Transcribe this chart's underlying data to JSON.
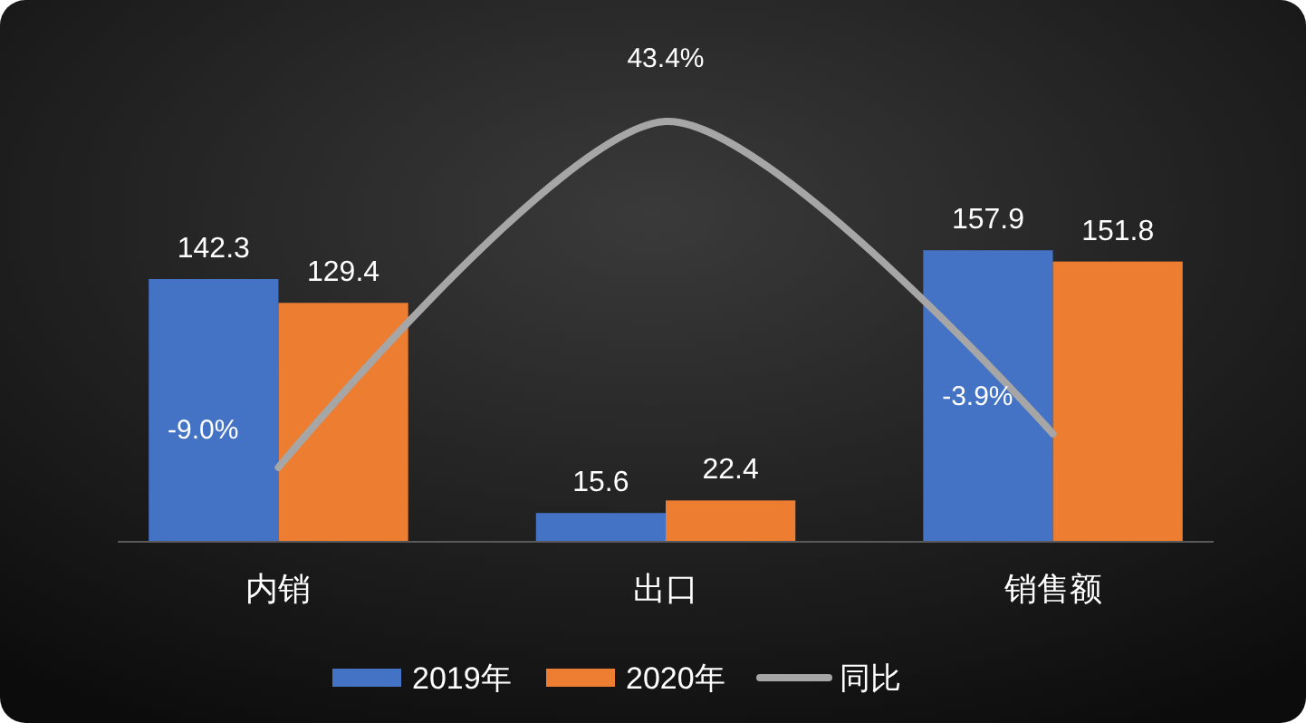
{
  "chart_data": {
    "type": "bar",
    "categories": [
      "内销",
      "出口",
      "销售额"
    ],
    "series": [
      {
        "name": "2019年",
        "color": "#4472c4",
        "values": [
          142.3,
          15.6,
          157.9
        ]
      },
      {
        "name": "2020年",
        "color": "#ed7d31",
        "values": [
          129.4,
          22.4,
          151.8
        ]
      },
      {
        "name": "同比",
        "type": "line",
        "axis": "y2",
        "color": "#a6a6a6",
        "values": [
          -9.0,
          43.4,
          -3.9
        ],
        "value_labels": [
          "-9.0%",
          "43.4%",
          "-3.9%"
        ]
      }
    ],
    "data_labels": true,
    "legend": "bottom",
    "grid": false,
    "tick_labels": "x"
  }
}
